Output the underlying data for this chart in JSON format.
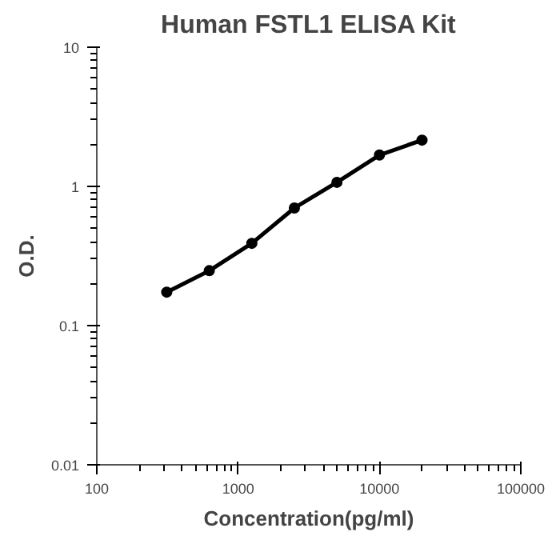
{
  "chart_data": {
    "type": "line",
    "title": "Human FSTL1 ELISA Kit",
    "xlabel": "Concentration(pg/ml)",
    "ylabel": "O.D.",
    "x": [
      312.5,
      625,
      1250,
      2500,
      5000,
      10000,
      20000
    ],
    "series": [
      {
        "color": "#000000",
        "values": [
          0.174,
          0.248,
          0.39,
          0.7,
          1.07,
          1.68,
          2.15
        ]
      }
    ],
    "log": "xy",
    "xlim": [
      100,
      100000
    ],
    "ylim": [
      0.01,
      10
    ],
    "xticks": [
      100,
      1000,
      10000,
      100000
    ],
    "yticks": [
      0.01,
      0.1,
      1,
      10
    ],
    "grid": false,
    "marker": "circle",
    "line_style": "solid"
  }
}
